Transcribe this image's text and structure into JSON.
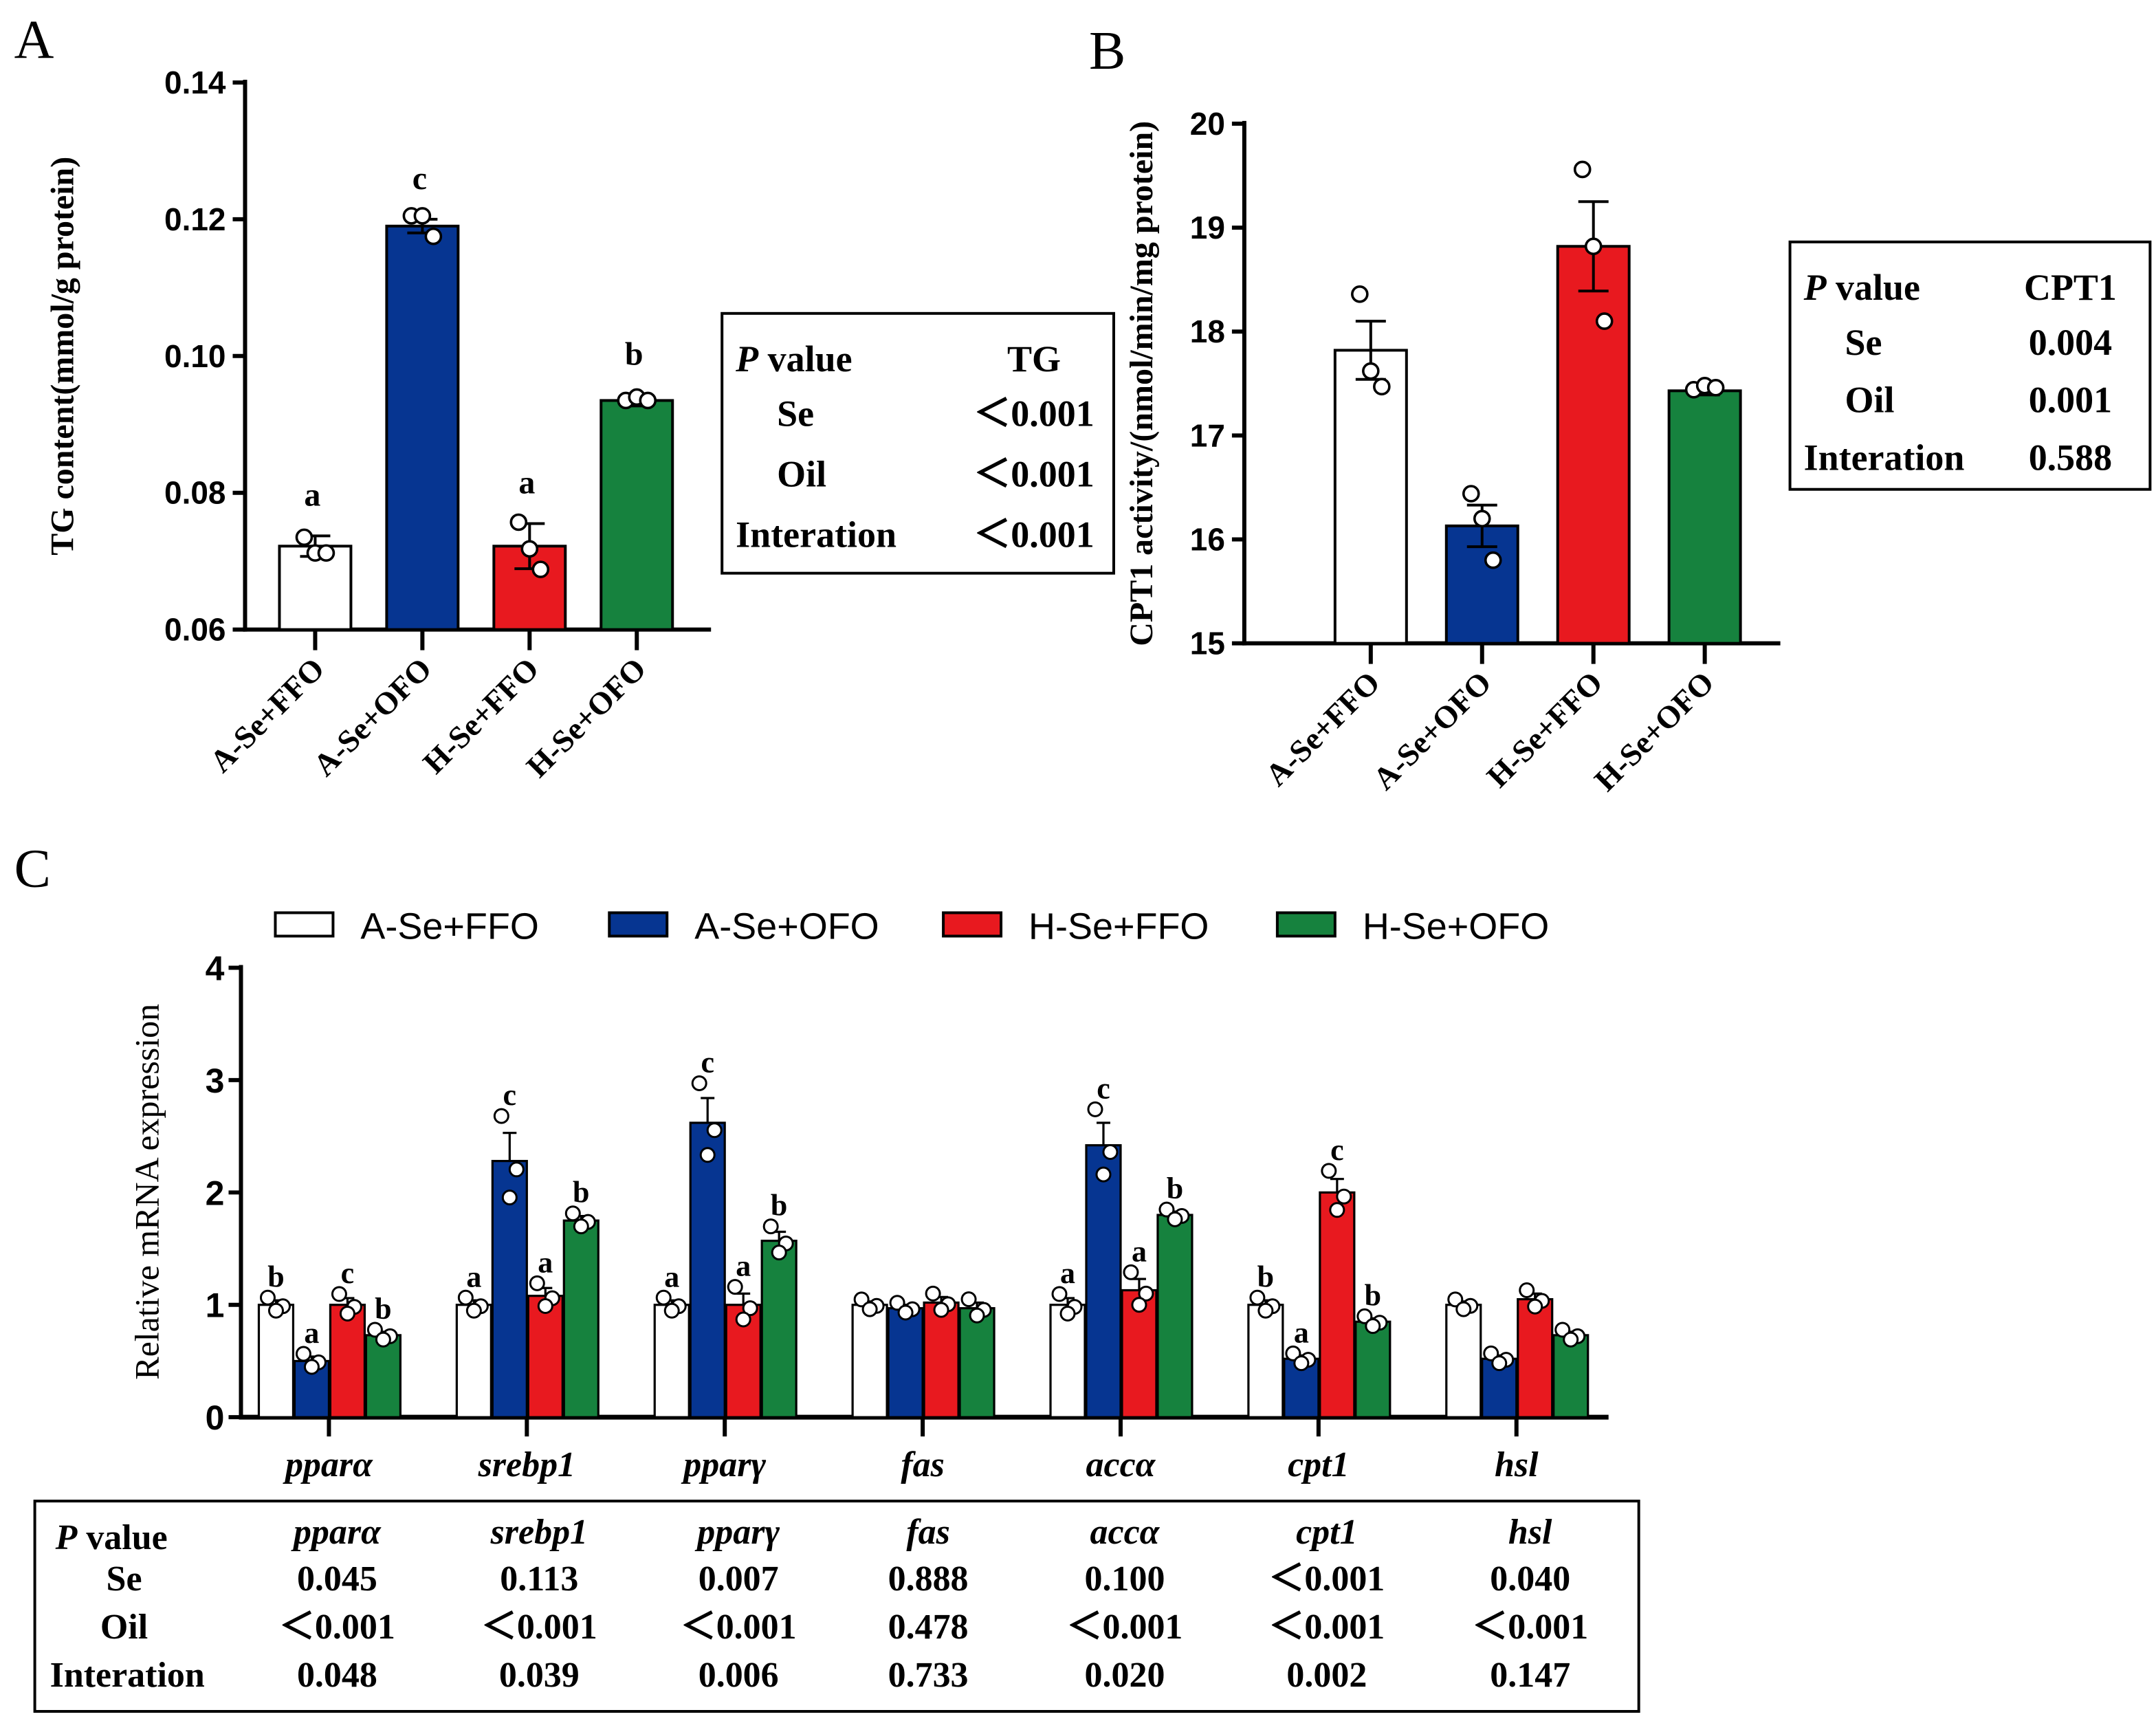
{
  "colors": {
    "A-Se+FFO": "#ffffff",
    "A-Se+OFO": "#063591",
    "H-Se+FFO": "#e8191f",
    "H-Se+OFO": "#16823e"
  },
  "chart_data": [
    {
      "panel": "A",
      "type": "bar",
      "ylabel": "TG content(mmol/g protein)",
      "ylim": [
        0.06,
        0.14
      ],
      "yticks": [
        "0.06",
        "0.08",
        "0.10",
        "0.12",
        "0.14"
      ],
      "categories": [
        "A-Se+FFO",
        "A-Se+OFO",
        "H-Se+FFO",
        "H-Se+OFO"
      ],
      "values": [
        0.0722,
        0.119,
        0.0722,
        0.0935
      ],
      "errors": [
        0.0015,
        0.001,
        0.0033,
        0.0008
      ],
      "points": [
        [
          0.0735,
          0.0712,
          0.0712
        ],
        [
          0.1205,
          0.1205,
          0.1175
        ],
        [
          0.0757,
          0.0718,
          0.0688
        ],
        [
          0.0935,
          0.094,
          0.0935
        ]
      ],
      "letters": [
        "a",
        "c",
        "a",
        "b"
      ],
      "pvalue_table": {
        "header": [
          "P value",
          "TG"
        ],
        "rows": [
          [
            "Se",
            "<0.001"
          ],
          [
            "Oil",
            "<0.001"
          ],
          [
            "Interation",
            "<0.001"
          ]
        ]
      }
    },
    {
      "panel": "B",
      "type": "bar",
      "ylabel": "CPT1 activity/(nmol/min/mg protein)",
      "ylim": [
        15,
        20
      ],
      "yticks": [
        "15",
        "16",
        "17",
        "18",
        "19",
        "20"
      ],
      "categories": [
        "A-Se+FFO",
        "A-Se+OFO",
        "H-Se+FFO",
        "H-Se+OFO"
      ],
      "values": [
        17.82,
        16.13,
        18.82,
        17.43
      ],
      "errors": [
        0.28,
        0.2,
        0.43,
        0.04
      ],
      "points": [
        [
          18.36,
          17.62,
          17.47
        ],
        [
          16.44,
          16.2,
          15.8
        ],
        [
          19.56,
          18.82,
          18.1
        ],
        [
          17.44,
          17.48,
          17.46
        ]
      ],
      "letters": [
        "",
        "",
        "",
        ""
      ],
      "pvalue_table": {
        "header": [
          "P value",
          "CPT1"
        ],
        "rows": [
          [
            "Se",
            "0.004"
          ],
          [
            "Oil",
            "0.001"
          ],
          [
            "Interation",
            "0.588"
          ]
        ]
      }
    },
    {
      "panel": "C",
      "type": "bar",
      "ylabel": "Relative mRNA expression",
      "ylim": [
        0,
        4
      ],
      "yticks": [
        "0",
        "1",
        "2",
        "3",
        "4"
      ],
      "legend": [
        "A-Se+FFO",
        "A-Se+OFO",
        "H-Se+FFO",
        "H-Se+OFO"
      ],
      "legend_position": "top",
      "categories": [
        "pparα",
        "srebp1",
        "pparγ",
        "fas",
        "accα",
        "cpt1",
        "hsl"
      ],
      "series": [
        {
          "name": "A-Se+FFO",
          "values": [
            1.0,
            1.0,
            1.0,
            1.0,
            1.0,
            1.0,
            1.0
          ],
          "errors": [
            0.04,
            0.04,
            0.04,
            0.03,
            0.06,
            0.04,
            0.03
          ],
          "letters": [
            "b",
            "a",
            "a",
            "",
            "a",
            "b",
            ""
          ]
        },
        {
          "name": "A-Se+OFO",
          "values": [
            0.5,
            2.28,
            2.62,
            0.97,
            2.42,
            0.52,
            0.52
          ],
          "errors": [
            0.04,
            0.25,
            0.22,
            0.03,
            0.2,
            0.03,
            0.03
          ],
          "letters": [
            "a",
            "c",
            "c",
            "",
            "c",
            "a",
            ""
          ]
        },
        {
          "name": "H-Se+FFO",
          "values": [
            1.0,
            1.08,
            1.0,
            1.02,
            1.13,
            2.0,
            1.05
          ],
          "errors": [
            0.06,
            0.07,
            0.1,
            0.05,
            0.1,
            0.12,
            0.05
          ],
          "letters": [
            "c",
            "a",
            "a",
            "",
            "a",
            "c",
            ""
          ]
        },
        {
          "name": "H-Se+OFO",
          "values": [
            0.73,
            1.75,
            1.57,
            0.97,
            1.8,
            0.85,
            0.73
          ],
          "errors": [
            0.03,
            0.04,
            0.08,
            0.05,
            0.03,
            0.03,
            0.03
          ],
          "letters": [
            "b",
            "b",
            "b",
            "",
            "b",
            "b",
            ""
          ]
        }
      ],
      "pvalue_table": {
        "header": [
          "P value",
          "pparα",
          "srebp1",
          "pparγ",
          "fas",
          "accα",
          "cpt1",
          "hsl"
        ],
        "rows": [
          [
            "Se",
            "0.045",
            "0.113",
            "0.007",
            "0.888",
            "0.100",
            "<0.001",
            "0.040"
          ],
          [
            "Oil",
            "<0.001",
            "<0.001",
            "<0.001",
            "0.478",
            "<0.001",
            "<0.001",
            "<0.001"
          ],
          [
            "Interation",
            "0.048",
            "0.039",
            "0.006",
            "0.733",
            "0.020",
            "0.002",
            "0.147"
          ]
        ]
      }
    }
  ]
}
